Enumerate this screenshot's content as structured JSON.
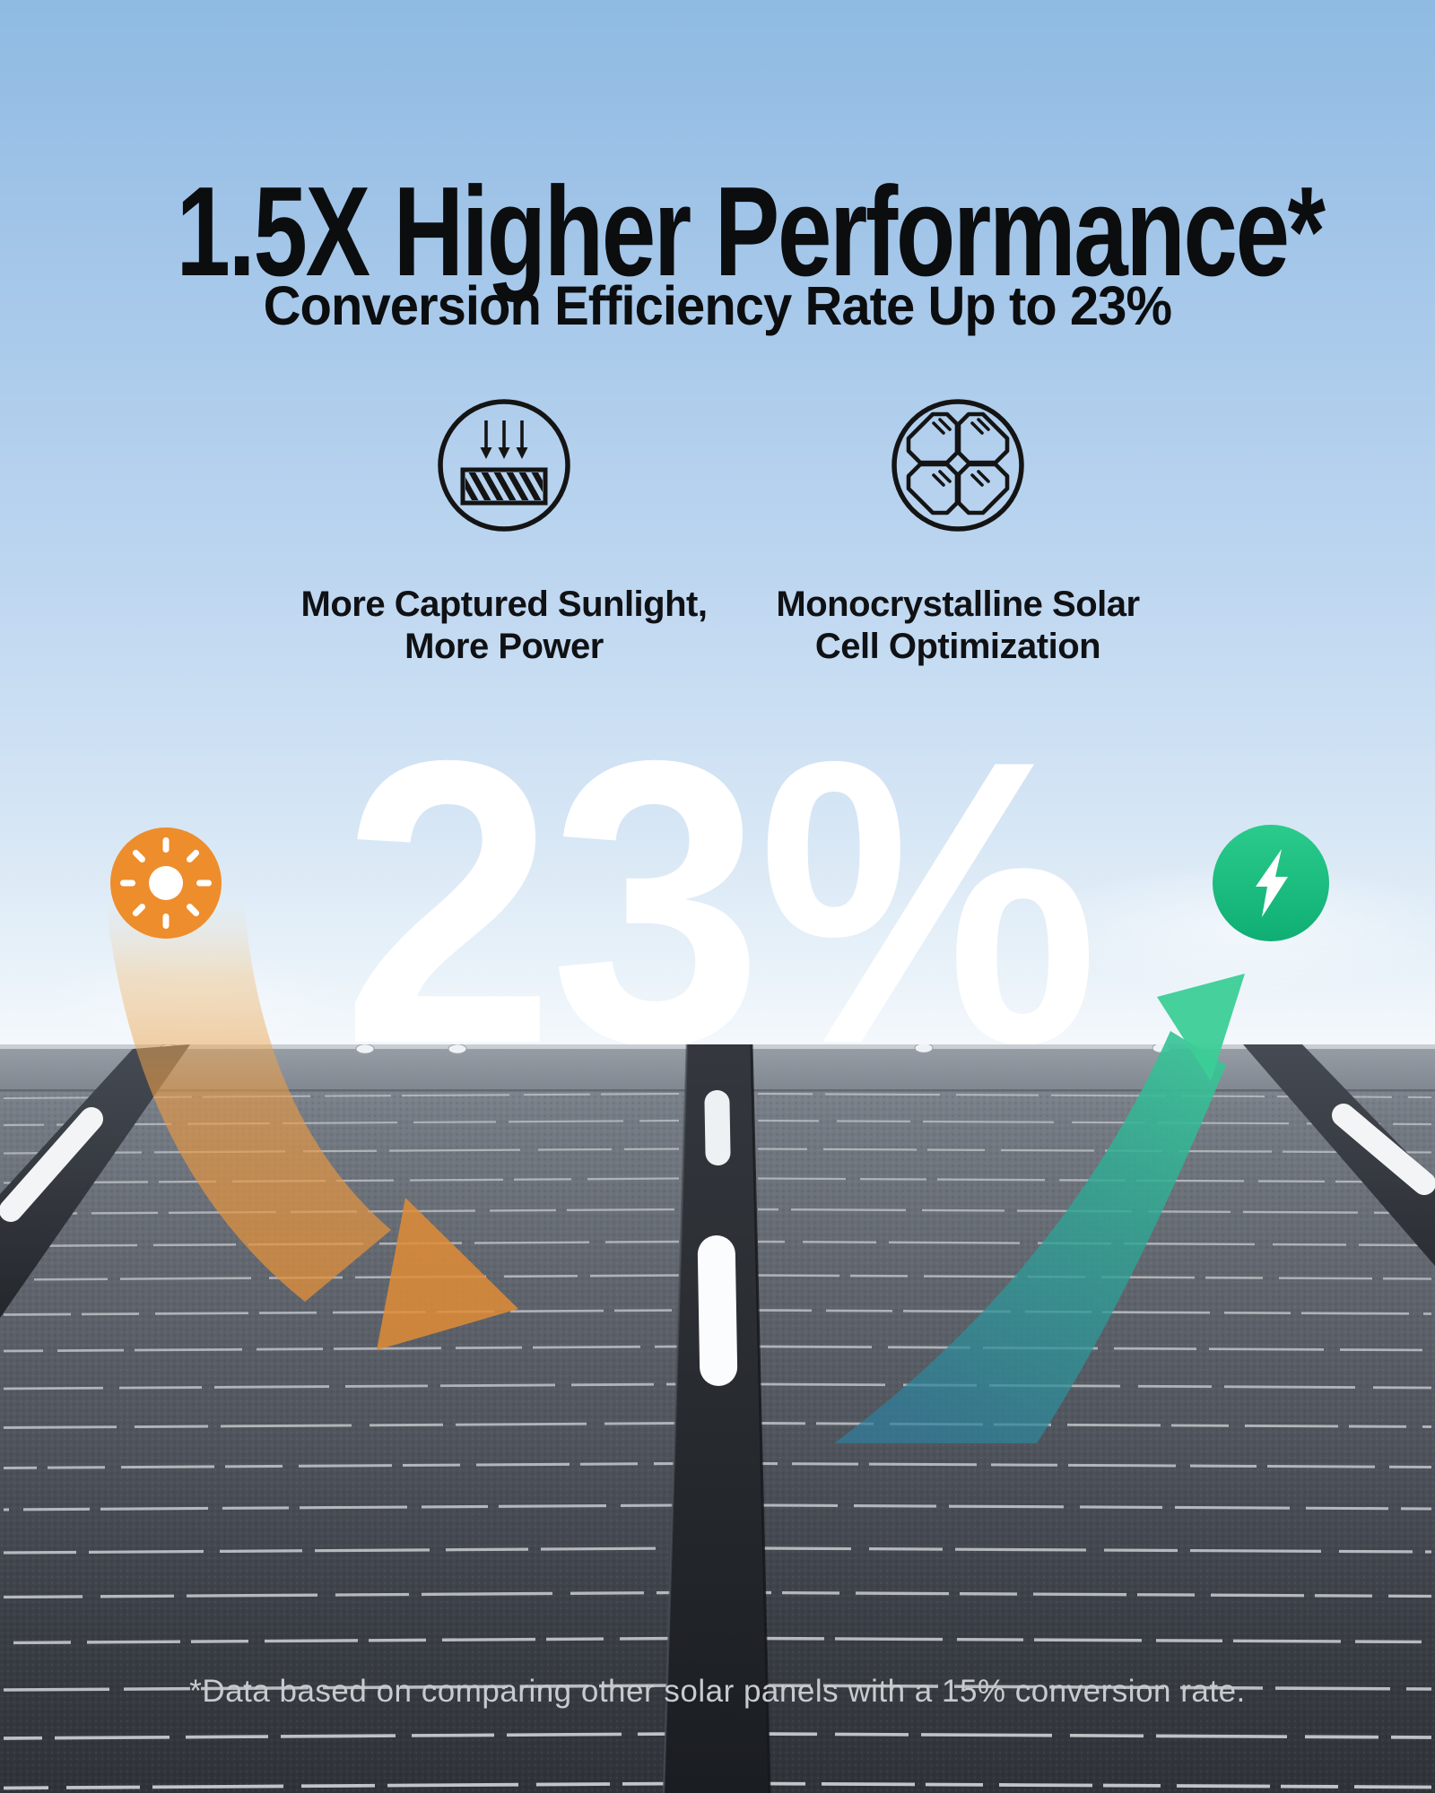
{
  "title": "1.5X Higher Performance*",
  "subtitle": "Conversion Efficiency Rate Up to 23%",
  "stat": "23%",
  "features": [
    {
      "icon": "captured-sunlight-icon",
      "lines": [
        "More Captured Sunlight,",
        "More Power"
      ]
    },
    {
      "icon": "monocrystalline-cells-icon",
      "lines": [
        "Monocrystalline Solar",
        "Cell Optimization"
      ]
    }
  ],
  "footnote": "*Data based on comparing other solar panels with a 15% conversion rate.",
  "colors": {
    "sky_top": "#8FBAE2",
    "sky_horizon": "#F4F8FC",
    "title_black": "#0C0D0F",
    "stat_white": "#FFFFFF",
    "sun_orange": "#EE8D2C",
    "energy_green_top": "#2BCB8C",
    "energy_green_bottom": "#0FAE74",
    "arrow_orange": "#E08C36",
    "arrow_teal": "#2E7E9D",
    "arrow_green": "#3CCE97",
    "panel_gray_top": "#899099",
    "panel_gray_bottom": "#2F3339",
    "footnote_gray": "#C7CBCE"
  }
}
